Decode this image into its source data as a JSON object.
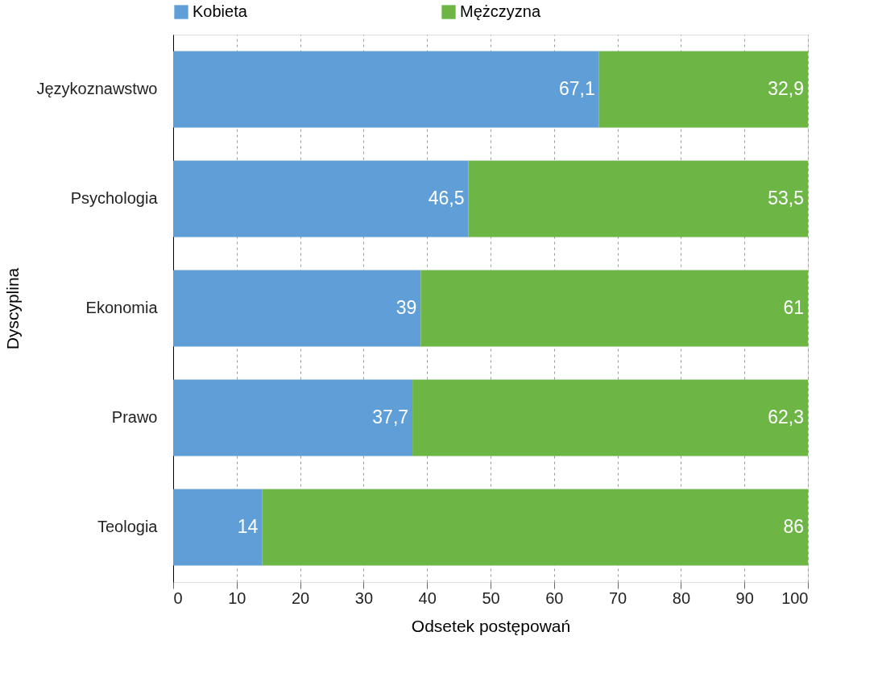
{
  "chart_data": {
    "type": "bar",
    "orientation": "horizontal",
    "stacked": true,
    "xlabel": "Odsetek postępowań",
    "ylabel": "Dyscyplina",
    "categories": [
      "Językoznawstwo",
      "Psychologia",
      "Ekonomia",
      "Prawo",
      "Teologia"
    ],
    "series": [
      {
        "name": "Kobieta",
        "color": "#5f9ed6",
        "values": [
          67.1,
          46.5,
          39,
          37.7,
          14
        ],
        "value_labels": [
          "67,1",
          "46,5",
          "39",
          "37,7",
          "14"
        ]
      },
      {
        "name": "Mężczyzna",
        "color": "#6db646",
        "values": [
          32.9,
          53.5,
          61,
          62.3,
          86
        ],
        "value_labels": [
          "32,9",
          "53,5",
          "61",
          "62,3",
          "86"
        ]
      }
    ],
    "xlim": [
      0,
      100
    ],
    "xticks": [
      0,
      10,
      20,
      30,
      40,
      50,
      60,
      70,
      80,
      90,
      100
    ],
    "grid": "x",
    "legend": "top"
  }
}
